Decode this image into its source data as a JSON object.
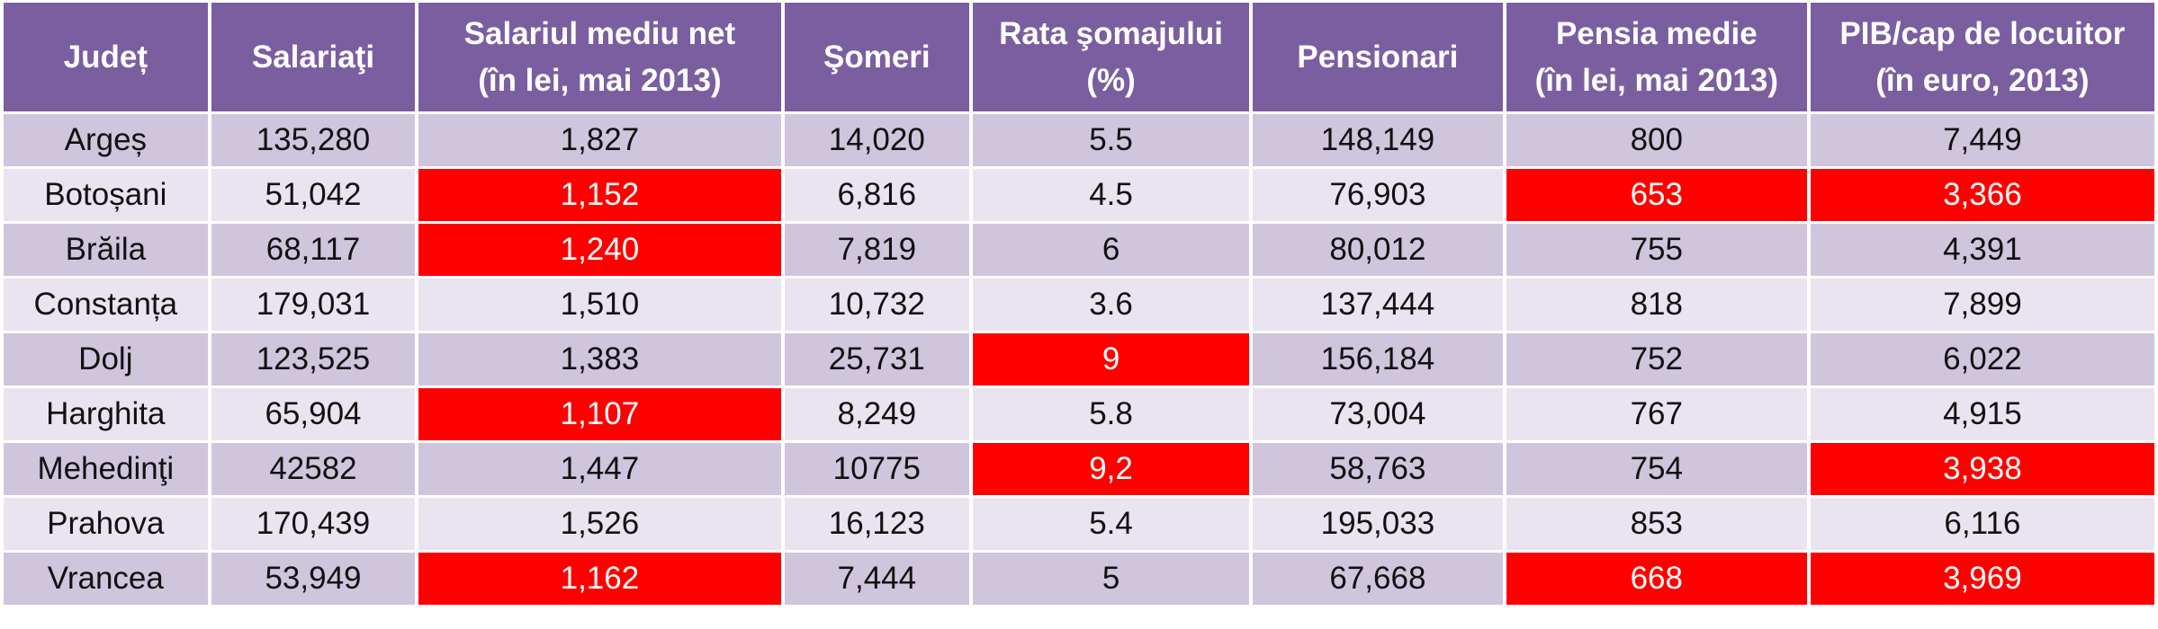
{
  "chart_data": {
    "type": "table",
    "columns": [
      {
        "key": "county",
        "line1": "Județ",
        "line2": ""
      },
      {
        "key": "employees",
        "line1": "Salariaţi",
        "line2": ""
      },
      {
        "key": "net_salary",
        "line1": "Salariul mediu net",
        "line2": "(în lei, mai 2013)"
      },
      {
        "key": "unemployed",
        "line1": "Şomeri",
        "line2": ""
      },
      {
        "key": "unemployment_rate",
        "line1": "Rata şomajului",
        "line2": "(%)"
      },
      {
        "key": "pensioners",
        "line1": "Pensionari",
        "line2": ""
      },
      {
        "key": "avg_pension",
        "line1": "Pensia medie",
        "line2": "(în lei, mai 2013)"
      },
      {
        "key": "gdp_per_capita",
        "line1": "PIB/cap de locuitor",
        "line2": "(în euro, 2013)"
      }
    ],
    "rows": [
      [
        "Argeș",
        "135,280",
        "1,827",
        "14,020",
        "5.5",
        "148,149",
        "800",
        "7,449"
      ],
      [
        "Botoșani",
        "51,042",
        "1,152",
        "6,816",
        "4.5",
        "76,903",
        "653",
        "3,366"
      ],
      [
        "Brăila",
        "68,117",
        "1,240",
        "7,819",
        "6",
        "80,012",
        "755",
        "4,391"
      ],
      [
        "Constanța",
        "179,031",
        "1,510",
        "10,732",
        "3.6",
        "137,444",
        "818",
        "7,899"
      ],
      [
        "Dolj",
        "123,525",
        "1,383",
        "25,731",
        "9",
        "156,184",
        "752",
        "6,022"
      ],
      [
        "Harghita",
        "65,904",
        "1,107",
        "8,249",
        "5.8",
        "73,004",
        "767",
        "4,915"
      ],
      [
        "Mehedinţi",
        "42582",
        "1,447",
        "10775",
        "9,2",
        "58,763",
        "754",
        "3,938"
      ],
      [
        "Prahova",
        "170,439",
        "1,526",
        "16,123",
        "5.4",
        "195,033",
        "853",
        "6,116"
      ],
      [
        "Vrancea",
        "53,949",
        "1,162",
        "7,444",
        "5",
        "67,668",
        "668",
        "3,969"
      ]
    ],
    "highlighted": [
      [
        1,
        2
      ],
      [
        1,
        6
      ],
      [
        1,
        7
      ],
      [
        2,
        2
      ],
      [
        4,
        4
      ],
      [
        5,
        2
      ],
      [
        6,
        4
      ],
      [
        6,
        7
      ],
      [
        8,
        2
      ],
      [
        8,
        6
      ],
      [
        8,
        7
      ]
    ],
    "colors": {
      "header_bg": "#7b5ea0",
      "header_text": "#ffffff",
      "row_dark": "#cfc5dd",
      "row_light": "#e9e4f0",
      "highlight": "#ff0000",
      "highlight_text": "#ffffff"
    }
  }
}
